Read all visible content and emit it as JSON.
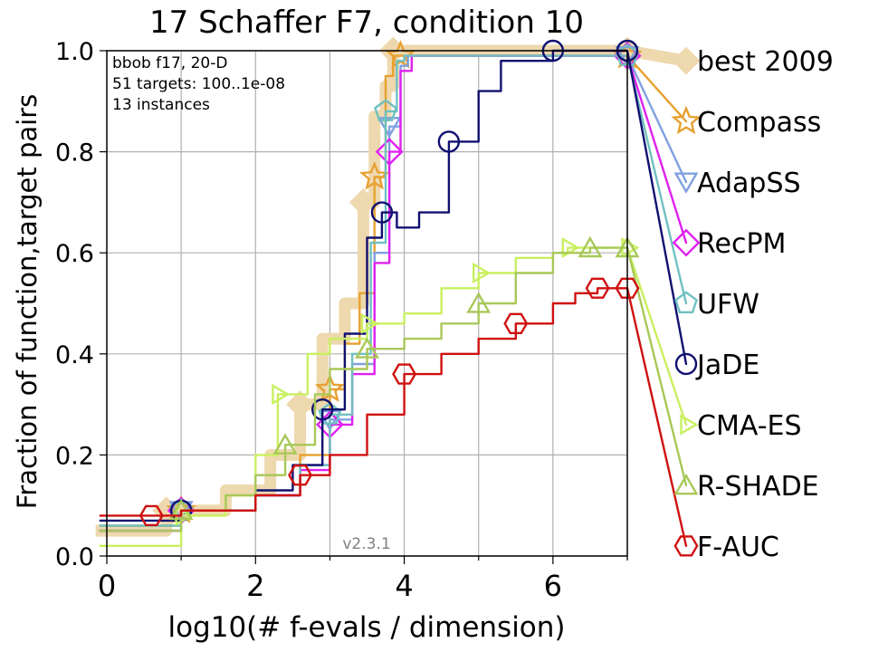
{
  "chart_data": {
    "type": "line",
    "title": "17 Schaffer F7, condition 10",
    "xlabel": "log10(# f-evals / dimension)",
    "ylabel": "Fraction of function,target pairs",
    "xlim": [
      0,
      7
    ],
    "ylim": [
      0,
      1
    ],
    "xticks": [
      0,
      2,
      4,
      6
    ],
    "yticks": [
      0.0,
      0.2,
      0.4,
      0.6,
      0.8,
      1.0
    ],
    "xtick_labels": [
      "0",
      "2",
      "4",
      "6"
    ],
    "ytick_labels": [
      "0.0",
      "0.2",
      "0.4",
      "0.6",
      "0.8",
      "1.0"
    ],
    "grid": true,
    "info_lines": [
      "bbob f17, 20-D",
      "51 targets: 100..1e-08",
      "13 instances"
    ],
    "version": "v2.3.1",
    "legend_placement": "right-outside",
    "series": [
      {
        "name": "best 2009",
        "color": "#EED8AE",
        "marker": "diamond",
        "x": [
          -0.3,
          0.8,
          1.6,
          2.2,
          2.6,
          2.9,
          3.2,
          3.45,
          3.6,
          3.75,
          3.85,
          4.0,
          7.0
        ],
        "y": [
          0.05,
          0.09,
          0.13,
          0.2,
          0.3,
          0.43,
          0.5,
          0.7,
          0.87,
          0.93,
          1.0,
          1.0,
          1.0
        ],
        "end": 0.98
      },
      {
        "name": "Compass",
        "color": "#E8A030",
        "marker": "star",
        "x": [
          -0.1,
          1.0,
          2.0,
          2.6,
          3.0,
          3.2,
          3.4,
          3.6,
          3.75,
          3.85,
          3.95,
          7.0
        ],
        "y": [
          0.06,
          0.09,
          0.12,
          0.2,
          0.33,
          0.42,
          0.52,
          0.75,
          0.95,
          0.99,
          0.99,
          0.99
        ],
        "end": 0.86
      },
      {
        "name": "AdapSS",
        "color": "#7FA0E0",
        "marker": "triangle-down",
        "x": [
          -0.1,
          1.0,
          2.0,
          2.6,
          3.0,
          3.3,
          3.6,
          3.8,
          3.95,
          4.05,
          7.0
        ],
        "y": [
          0.05,
          0.09,
          0.12,
          0.18,
          0.27,
          0.38,
          0.6,
          0.85,
          0.97,
          0.99,
          0.99
        ],
        "end": 0.74
      },
      {
        "name": "RecPM",
        "color": "#E020F0",
        "marker": "diamond",
        "x": [
          -0.1,
          1.0,
          2.0,
          2.6,
          3.0,
          3.3,
          3.6,
          3.8,
          3.95,
          4.1,
          7.0
        ],
        "y": [
          0.05,
          0.09,
          0.12,
          0.17,
          0.26,
          0.36,
          0.58,
          0.8,
          0.96,
          0.99,
          0.99
        ],
        "end": 0.62
      },
      {
        "name": "UFW",
        "color": "#70C0C0",
        "marker": "pentagon",
        "x": [
          -0.1,
          1.0,
          2.0,
          2.6,
          3.0,
          3.3,
          3.55,
          3.75,
          3.9,
          4.0,
          7.0
        ],
        "y": [
          0.06,
          0.09,
          0.12,
          0.18,
          0.28,
          0.4,
          0.62,
          0.88,
          0.98,
          0.99,
          0.99
        ],
        "end": 0.5
      },
      {
        "name": "JaDE",
        "color": "#101070",
        "marker": "circle",
        "x": [
          -0.1,
          1.0,
          2.0,
          2.5,
          2.9,
          3.2,
          3.5,
          3.7,
          3.9,
          4.2,
          4.6,
          5.0,
          5.3,
          6.0,
          7.0
        ],
        "y": [
          0.07,
          0.09,
          0.13,
          0.18,
          0.29,
          0.44,
          0.63,
          0.68,
          0.65,
          0.68,
          0.82,
          0.92,
          0.98,
          1.0,
          1.0
        ],
        "end": 0.38
      },
      {
        "name": "CMA-ES",
        "color": "#C8F060",
        "marker": "triangle-right",
        "x": [
          -0.1,
          1.0,
          1.6,
          2.0,
          2.3,
          2.7,
          3.0,
          3.5,
          4.0,
          4.5,
          5.0,
          5.5,
          6.0,
          6.2,
          7.0
        ],
        "y": [
          0.02,
          0.08,
          0.12,
          0.2,
          0.32,
          0.4,
          0.43,
          0.46,
          0.48,
          0.53,
          0.56,
          0.59,
          0.6,
          0.61,
          0.61
        ],
        "end": 0.26
      },
      {
        "name": "R-SHADE",
        "color": "#A8C858",
        "marker": "triangle",
        "x": [
          -0.1,
          1.0,
          1.6,
          2.0,
          2.4,
          2.8,
          3.0,
          3.5,
          4.0,
          4.5,
          5.0,
          5.5,
          6.0,
          6.5,
          7.0
        ],
        "y": [
          0.05,
          0.09,
          0.12,
          0.16,
          0.22,
          0.32,
          0.37,
          0.41,
          0.43,
          0.46,
          0.5,
          0.56,
          0.6,
          0.61,
          0.61
        ],
        "end": 0.14
      },
      {
        "name": "F-AUC",
        "color": "#D01010",
        "marker": "hexagon",
        "x": [
          -0.1,
          0.6,
          1.0,
          2.0,
          2.6,
          3.0,
          3.5,
          4.0,
          4.5,
          5.0,
          5.5,
          6.0,
          6.3,
          6.6,
          7.0
        ],
        "y": [
          0.08,
          0.08,
          0.09,
          0.12,
          0.16,
          0.2,
          0.28,
          0.36,
          0.4,
          0.43,
          0.46,
          0.5,
          0.52,
          0.53,
          0.53
        ],
        "end": 0.02
      }
    ]
  }
}
